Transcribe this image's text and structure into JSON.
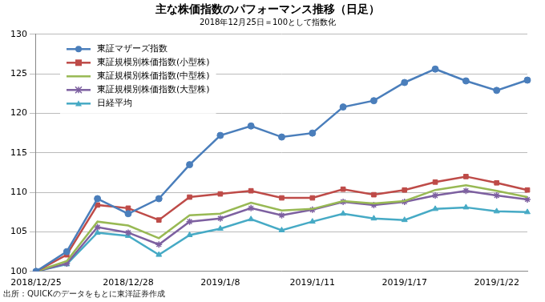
{
  "chart_data": {
    "type": "line",
    "title": "主な株価指数のパフォーマンス推移（日足）",
    "subtitle": "2018年12月25日＝100として指数化",
    "source": "出所：QUICKのデータをもとに東洋証券作成",
    "categories": [
      "2018/12/25",
      null,
      null,
      "2018/12/28",
      null,
      null,
      "2019/1/8",
      null,
      null,
      "2019/1/11",
      null,
      null,
      "2019/1/17",
      null,
      null,
      "2019/1/22",
      null
    ],
    "series": [
      {
        "name": "東証マザーズ指数",
        "color": "#4a7ebb",
        "marker": "circle",
        "values": [
          100,
          102.5,
          109.2,
          107.3,
          109.2,
          113.5,
          117.2,
          118.4,
          117.0,
          117.5,
          120.8,
          121.6,
          123.9,
          125.6,
          124.1,
          122.9,
          124.2
        ]
      },
      {
        "name": "東証規模別株価指数(小型株)",
        "color": "#be4b48",
        "marker": "square",
        "values": [
          100,
          102.1,
          108.4,
          108.0,
          106.5,
          109.4,
          109.8,
          110.2,
          109.3,
          109.3,
          110.4,
          109.7,
          110.3,
          111.3,
          112.0,
          111.2,
          110.3
        ]
      },
      {
        "name": "東証規模別株価指数(中型株)",
        "color": "#98b954",
        "marker": "dash",
        "values": [
          100,
          101.3,
          106.3,
          105.8,
          104.2,
          107.1,
          107.3,
          108.7,
          107.7,
          107.9,
          108.9,
          108.6,
          108.9,
          110.3,
          110.9,
          110.2,
          109.4
        ]
      },
      {
        "name": "東証規模別株価指数(大型株)",
        "color": "#7d60a0",
        "marker": "star",
        "values": [
          100,
          101.0,
          105.6,
          104.9,
          103.4,
          106.3,
          106.7,
          108.0,
          107.1,
          107.8,
          108.8,
          108.4,
          108.8,
          109.6,
          110.2,
          109.6,
          109.1
        ]
      },
      {
        "name": "日経平均",
        "color": "#46aac5",
        "marker": "triangle",
        "values": [
          100,
          100.9,
          104.9,
          104.5,
          102.1,
          104.6,
          105.4,
          106.6,
          105.2,
          106.3,
          107.3,
          106.7,
          106.5,
          107.9,
          108.1,
          107.6,
          107.5
        ]
      }
    ],
    "ylim": [
      100,
      130
    ],
    "yticks": [
      100,
      105,
      110,
      115,
      120,
      125,
      130
    ],
    "grid": true,
    "legend": "upper left"
  }
}
